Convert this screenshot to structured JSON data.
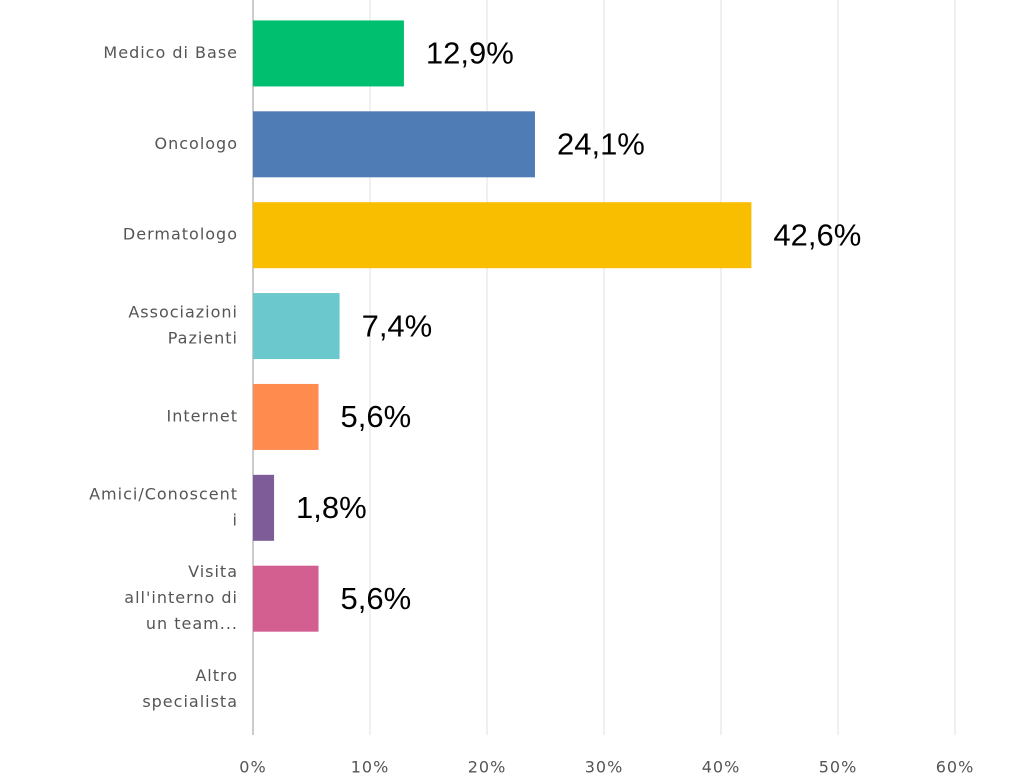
{
  "chart_data": {
    "type": "hbar",
    "categories": [
      [
        "Medico di Base"
      ],
      [
        "Oncologo"
      ],
      [
        "Dermatologo"
      ],
      [
        "Associazioni",
        "Pazienti"
      ],
      [
        "Internet"
      ],
      [
        "Amici/Conoscent",
        "i"
      ],
      [
        "Visita",
        "all'interno di",
        "un team..."
      ],
      [
        "Altro",
        "specialista"
      ]
    ],
    "values": [
      12.9,
      24.1,
      42.6,
      7.4,
      5.6,
      1.8,
      5.6,
      0
    ],
    "value_labels": [
      "12,9%",
      "24,1%",
      "42,6%",
      "7,4%",
      "5,6%",
      "1,8%",
      "5,6%",
      null
    ],
    "colors": [
      "#00bf6f",
      "#507cb6",
      "#f9be00",
      "#6bc8cd",
      "#ff8b4f",
      "#7d5c97",
      "#d25f90",
      "#999999"
    ],
    "xlim": [
      0,
      65
    ],
    "xticks": [
      {
        "value": 0,
        "label": "0%"
      },
      {
        "value": 10,
        "label": "10%"
      },
      {
        "value": 20,
        "label": "20%"
      },
      {
        "value": 30,
        "label": "30%"
      },
      {
        "value": 40,
        "label": "40%"
      },
      {
        "value": 50,
        "label": "50%"
      },
      {
        "value": 60,
        "label": "60%"
      }
    ],
    "grid": true
  }
}
